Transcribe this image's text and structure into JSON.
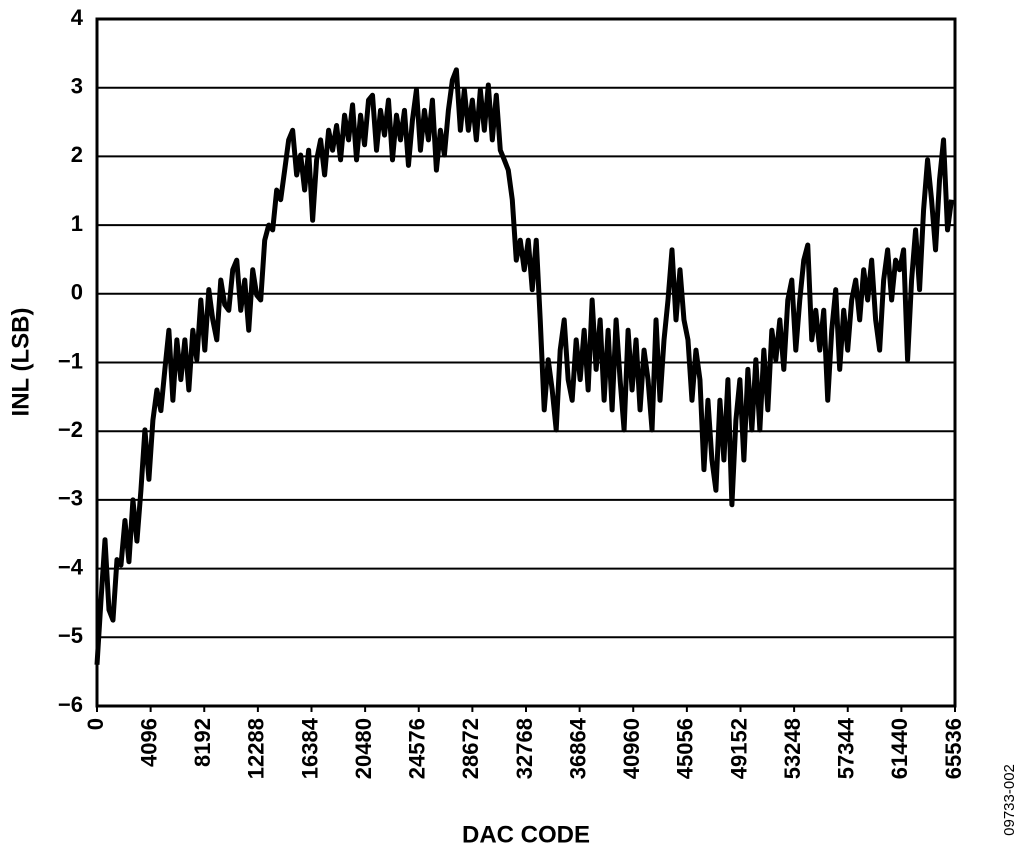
{
  "chart_data": {
    "type": "line",
    "x_label": "DAC CODE",
    "y_label": "INL (LSB)",
    "figure_code": "09733-002",
    "color": "#000000",
    "grid": true,
    "xlim": [
      0,
      65536
    ],
    "ylim": [
      -6,
      4
    ],
    "xticks": [
      0,
      4096,
      8192,
      12288,
      16384,
      20480,
      24576,
      28672,
      32768,
      36864,
      40960,
      45056,
      49152,
      53248,
      57344,
      61440,
      65536
    ],
    "yticks": [
      {
        "value": -6,
        "label": "−6"
      },
      {
        "value": -5,
        "label": "−5"
      },
      {
        "value": -4,
        "label": "−4"
      },
      {
        "value": -3,
        "label": "−3"
      },
      {
        "value": -2,
        "label": "−2"
      },
      {
        "value": -1,
        "label": "−1"
      },
      0,
      1,
      2,
      3,
      4
    ],
    "x": [
      0,
      305,
      610,
      915,
      1220,
      1525,
      1830,
      2135,
      2440,
      2745,
      3050,
      3355,
      3660,
      3965,
      4270,
      4575,
      4880,
      5185,
      5490,
      5795,
      6100,
      6405,
      6710,
      7015,
      7320,
      7625,
      7930,
      8235,
      8540,
      8845,
      9150,
      9455,
      9760,
      10065,
      10370,
      10675,
      10980,
      11285,
      11590,
      11895,
      12200,
      12505,
      12810,
      13115,
      13420,
      13725,
      14030,
      14335,
      14640,
      14945,
      15250,
      15555,
      15860,
      16165,
      16470,
      16775,
      17080,
      17385,
      17690,
      17995,
      18300,
      18605,
      18910,
      19215,
      19520,
      19825,
      20130,
      20435,
      20740,
      21045,
      21350,
      21655,
      21960,
      22265,
      22570,
      22875,
      23180,
      23485,
      23790,
      24095,
      24400,
      24705,
      25010,
      25315,
      25620,
      25925,
      26230,
      26535,
      26840,
      27145,
      27450,
      27755,
      28060,
      28365,
      28670,
      28975,
      29280,
      29585,
      29890,
      30195,
      30500,
      30805,
      31110,
      31415,
      31720,
      32025,
      32330,
      32635,
      32940,
      33245,
      33550,
      33855,
      34160,
      34465,
      34770,
      35075,
      35380,
      35685,
      35990,
      36295,
      36600,
      36905,
      37210,
      37515,
      37820,
      38125,
      38430,
      38735,
      39040,
      39345,
      39650,
      39955,
      40260,
      40565,
      40870,
      41175,
      41480,
      41785,
      42090,
      42395,
      42700,
      43005,
      43310,
      43615,
      43920,
      44225,
      44530,
      44835,
      45140,
      45445,
      45750,
      46055,
      46360,
      46665,
      46970,
      47275,
      47580,
      47885,
      48190,
      48495,
      48800,
      49105,
      49410,
      49715,
      50020,
      50325,
      50630,
      50935,
      51240,
      51545,
      51850,
      52155,
      52460,
      52765,
      53070,
      53375,
      53680,
      53985,
      54290,
      54595,
      54900,
      55205,
      55510,
      55815,
      56120,
      56425,
      56730,
      57035,
      57340,
      57645,
      57950,
      58255,
      58560,
      58865,
      59170,
      59475,
      59780,
      60085,
      60390,
      60695,
      61000,
      61305,
      61610,
      61915,
      62220,
      62525,
      62830,
      63135,
      63440,
      63745,
      64050,
      64355,
      64660,
      64965,
      65270
    ],
    "values": [
      -5.4,
      -4.46,
      -3.58,
      -4.6,
      -4.75,
      -3.87,
      -3.95,
      -3.3,
      -3.9,
      -3.0,
      -3.6,
      -2.86,
      -1.98,
      -2.7,
      -1.84,
      -1.4,
      -1.7,
      -1.1,
      -0.53,
      -1.55,
      -0.67,
      -1.25,
      -0.67,
      -1.4,
      -0.53,
      -0.96,
      -0.09,
      -0.82,
      0.06,
      -0.38,
      -0.67,
      0.2,
      -0.16,
      -0.24,
      0.35,
      0.49,
      -0.24,
      0.2,
      -0.53,
      0.35,
      -0.02,
      -0.09,
      0.78,
      1.0,
      0.93,
      1.51,
      1.37,
      1.8,
      2.24,
      2.38,
      1.73,
      2.02,
      1.51,
      2.09,
      1.07,
      1.95,
      2.24,
      1.73,
      2.38,
      2.09,
      2.45,
      1.95,
      2.6,
      2.24,
      2.75,
      1.95,
      2.6,
      2.17,
      2.82,
      2.89,
      2.09,
      2.67,
      2.31,
      2.82,
      1.95,
      2.6,
      2.24,
      2.67,
      1.87,
      2.53,
      2.97,
      2.09,
      2.67,
      2.24,
      2.82,
      1.8,
      2.38,
      2.02,
      2.67,
      3.11,
      3.26,
      2.38,
      2.97,
      2.38,
      2.82,
      2.24,
      2.97,
      2.38,
      3.04,
      2.24,
      2.89,
      2.09,
      1.95,
      1.8,
      1.37,
      0.49,
      0.78,
      0.35,
      0.78,
      0.06,
      0.78,
      -0.38,
      -1.69,
      -0.96,
      -1.4,
      -1.98,
      -0.82,
      -0.38,
      -1.25,
      -1.55,
      -0.67,
      -1.25,
      -0.53,
      -1.4,
      -0.09,
      -1.1,
      -0.38,
      -1.55,
      -0.53,
      -1.69,
      -0.38,
      -1.25,
      -1.98,
      -0.53,
      -1.4,
      -0.67,
      -1.69,
      -0.82,
      -1.25,
      -1.98,
      -0.38,
      -1.55,
      -0.67,
      -0.09,
      0.64,
      -0.38,
      0.35,
      -0.38,
      -0.67,
      -1.55,
      -0.82,
      -1.25,
      -2.56,
      -1.55,
      -2.42,
      -2.86,
      -1.55,
      -2.42,
      -1.25,
      -3.07,
      -1.84,
      -1.25,
      -2.42,
      -1.1,
      -1.98,
      -0.96,
      -1.98,
      -0.82,
      -1.69,
      -0.53,
      -0.96,
      -0.38,
      -1.1,
      -0.09,
      0.2,
      -0.82,
      -0.09,
      0.49,
      0.71,
      -0.67,
      -0.24,
      -0.82,
      -0.24,
      -1.55,
      -0.53,
      0.06,
      -1.1,
      -0.24,
      -0.82,
      -0.09,
      0.2,
      -0.38,
      0.35,
      -0.09,
      0.49,
      -0.38,
      -0.82,
      0.2,
      0.64,
      -0.09,
      0.49,
      0.35,
      0.64,
      -0.96,
      0.2,
      0.93,
      0.06,
      1.22,
      1.95,
      1.37,
      0.64,
      1.66,
      2.24,
      0.93,
      1.37
    ]
  }
}
